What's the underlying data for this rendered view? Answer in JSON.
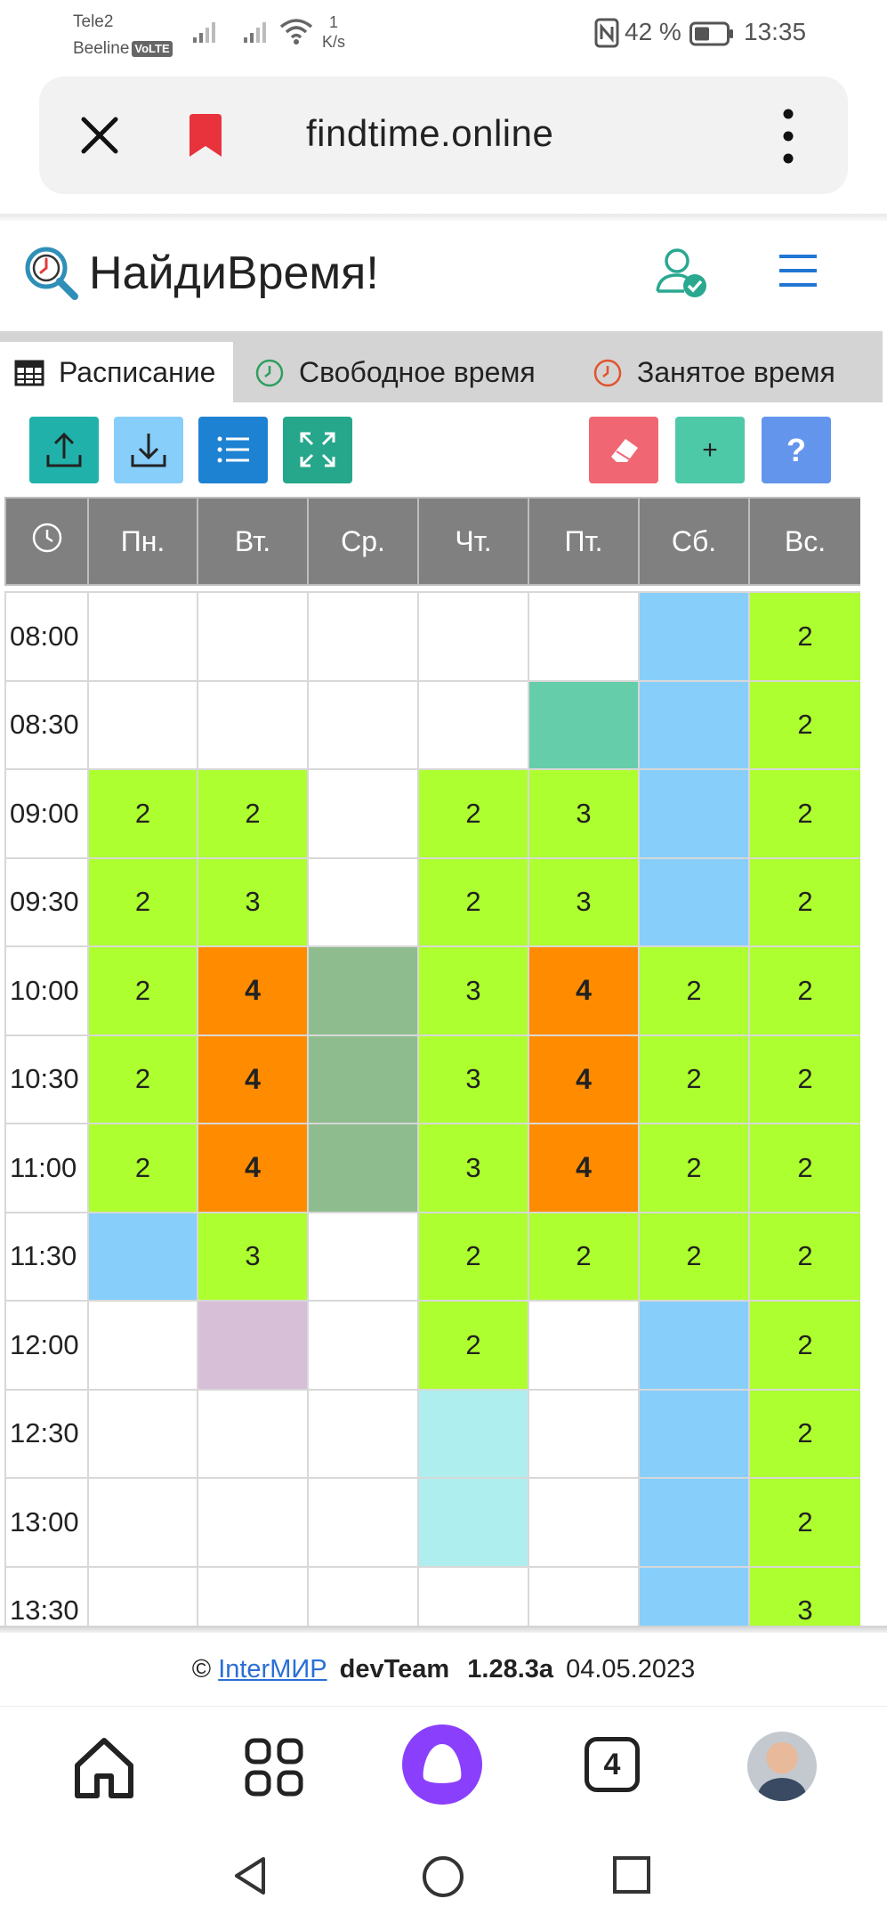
{
  "status_bar": {
    "carrier1": "Tele2",
    "carrier2": "Beeline",
    "volte": "VoLTE",
    "speed_value": "1",
    "speed_unit": "K/s",
    "battery": "42 %",
    "time": "13:35"
  },
  "browser": {
    "url": "findtime.online"
  },
  "app": {
    "title": "НайдиВремя!"
  },
  "tabs": [
    {
      "label": "Расписание",
      "active": true
    },
    {
      "label": "Свободное время",
      "active": false
    },
    {
      "label": "Занятое время",
      "active": false
    }
  ],
  "toolbar": {
    "add_label": "+",
    "help_label": "?"
  },
  "schedule": {
    "days": [
      "Пн.",
      "Вт.",
      "Ср.",
      "Чт.",
      "Пт.",
      "Сб.",
      "Вс."
    ],
    "rows": [
      {
        "time": "08:00",
        "cells": [
          [
            "",
            ""
          ],
          [
            "",
            ""
          ],
          [
            "",
            ""
          ],
          [
            "",
            ""
          ],
          [
            "",
            ""
          ],
          [
            "",
            "blue"
          ],
          [
            "2",
            "green"
          ]
        ]
      },
      {
        "time": "08:30",
        "cells": [
          [
            "",
            ""
          ],
          [
            "",
            ""
          ],
          [
            "",
            ""
          ],
          [
            "",
            ""
          ],
          [
            "",
            "teal"
          ],
          [
            "",
            "blue"
          ],
          [
            "2",
            "green"
          ]
        ]
      },
      {
        "time": "09:00",
        "cells": [
          [
            "2",
            "green"
          ],
          [
            "2",
            "green"
          ],
          [
            "",
            ""
          ],
          [
            "2",
            "green"
          ],
          [
            "3",
            "green"
          ],
          [
            "",
            "blue"
          ],
          [
            "2",
            "green"
          ]
        ]
      },
      {
        "time": "09:30",
        "cells": [
          [
            "2",
            "green"
          ],
          [
            "3",
            "green"
          ],
          [
            "",
            ""
          ],
          [
            "2",
            "green"
          ],
          [
            "3",
            "green"
          ],
          [
            "",
            "blue"
          ],
          [
            "2",
            "green"
          ]
        ]
      },
      {
        "time": "10:00",
        "cells": [
          [
            "2",
            "green"
          ],
          [
            "4",
            "orange"
          ],
          [
            "",
            "sage"
          ],
          [
            "3",
            "green"
          ],
          [
            "4",
            "orange"
          ],
          [
            "2",
            "green"
          ],
          [
            "2",
            "green"
          ]
        ]
      },
      {
        "time": "10:30",
        "cells": [
          [
            "2",
            "green"
          ],
          [
            "4",
            "orange"
          ],
          [
            "",
            "sage"
          ],
          [
            "3",
            "green"
          ],
          [
            "4",
            "orange"
          ],
          [
            "2",
            "green"
          ],
          [
            "2",
            "green"
          ]
        ]
      },
      {
        "time": "11:00",
        "cells": [
          [
            "2",
            "green"
          ],
          [
            "4",
            "orange"
          ],
          [
            "",
            "sage"
          ],
          [
            "3",
            "green"
          ],
          [
            "4",
            "orange"
          ],
          [
            "2",
            "green"
          ],
          [
            "2",
            "green"
          ]
        ]
      },
      {
        "time": "11:30",
        "cells": [
          [
            "",
            "blue"
          ],
          [
            "3",
            "green"
          ],
          [
            "",
            ""
          ],
          [
            "2",
            "green"
          ],
          [
            "2",
            "green"
          ],
          [
            "2",
            "green"
          ],
          [
            "2",
            "green"
          ]
        ]
      },
      {
        "time": "12:00",
        "cells": [
          [
            "",
            ""
          ],
          [
            "",
            "lilac"
          ],
          [
            "",
            ""
          ],
          [
            "2",
            "green"
          ],
          [
            "",
            ""
          ],
          [
            "",
            "blue"
          ],
          [
            "2",
            "green"
          ]
        ]
      },
      {
        "time": "12:30",
        "cells": [
          [
            "",
            ""
          ],
          [
            "",
            ""
          ],
          [
            "",
            ""
          ],
          [
            "",
            "cyan"
          ],
          [
            "",
            ""
          ],
          [
            "",
            "blue"
          ],
          [
            "2",
            "green"
          ]
        ]
      },
      {
        "time": "13:00",
        "cells": [
          [
            "",
            ""
          ],
          [
            "",
            ""
          ],
          [
            "",
            ""
          ],
          [
            "",
            "cyan"
          ],
          [
            "",
            ""
          ],
          [
            "",
            "blue"
          ],
          [
            "2",
            "green"
          ]
        ]
      },
      {
        "time": "13:30",
        "cells": [
          [
            "",
            ""
          ],
          [
            "",
            ""
          ],
          [
            "",
            ""
          ],
          [
            "",
            ""
          ],
          [
            "",
            ""
          ],
          [
            "",
            "blue"
          ],
          [
            "3",
            "green"
          ]
        ]
      }
    ]
  },
  "colors": {
    "green": "#adff2f",
    "orange": "#ff8c00",
    "blue": "#87cefa",
    "teal": "#66cdaa",
    "sage": "#8fbc8f",
    "lilac": "#d8bfd8",
    "cyan": "#afeeee",
    "header_gray": "#808080",
    "btn_teal": "#20b2aa",
    "btn_lightblue": "#87cefa",
    "btn_blue": "#1e82d2",
    "btn_green": "#26a68a",
    "btn_red": "#f06673",
    "btn_plus": "#4ec9a8",
    "btn_help": "#6495ed"
  },
  "footer": {
    "copyright": "©",
    "company": "InterМИР",
    "team": "devTeam",
    "version": "1.28.3a",
    "date": "04.05.2023"
  },
  "bottom_nav": {
    "tabs_count": "4"
  }
}
